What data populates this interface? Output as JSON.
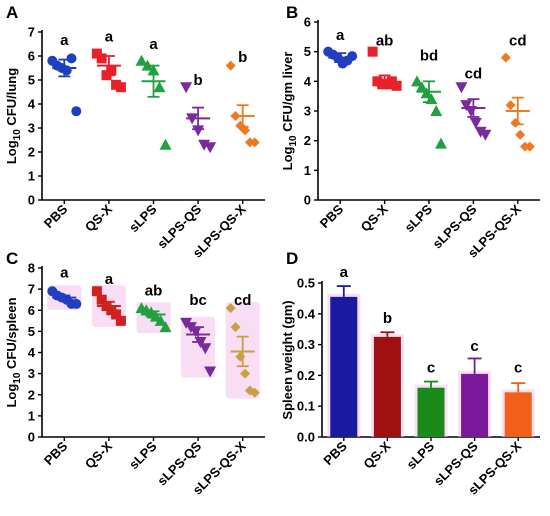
{
  "chart_data": [
    {
      "panel": "A",
      "type": "scatter",
      "categories": [
        "PBS",
        "QS-X",
        "sLPS",
        "sLPS-QS",
        "sLPS-QS-X"
      ],
      "ylabel_main": "Log",
      "ylabel_sub": "10",
      "ylabel_rest": " CFU/lung",
      "ylim": [
        0,
        7
      ],
      "yticks": [
        "0",
        "1",
        "2",
        "3",
        "4",
        "5",
        "6",
        "7"
      ],
      "marker_colors": [
        "#1f3fbf",
        "#e8202a",
        "#20a040",
        "#7a2a9a",
        "#f07820"
      ],
      "markers": [
        "circle",
        "square",
        "triangle-up",
        "triangle-down",
        "diamond"
      ],
      "points": [
        [
          5.8,
          5.6,
          5.5,
          5.4,
          5.9,
          3.7
        ],
        [
          6.1,
          5.9,
          5.2,
          5.4,
          4.8,
          4.7
        ],
        [
          5.8,
          5.6,
          5.4,
          4.7,
          2.3
        ],
        [
          4.7,
          3.4,
          2.9,
          2.3,
          2.2
        ],
        [
          5.6,
          3.5,
          3.1,
          2.9,
          2.4,
          2.4
        ]
      ],
      "means": [
        5.5,
        5.6,
        4.95,
        3.4,
        3.5
      ],
      "sems": [
        0.35,
        0.4,
        0.65,
        0.45,
        0.45
      ],
      "sig": [
        "a",
        "a",
        "a",
        "b",
        "b"
      ],
      "sig_y": [
        6.45,
        6.6,
        6.3,
        4.8,
        5.75
      ]
    },
    {
      "panel": "B",
      "type": "scatter",
      "categories": [
        "PBS",
        "QS-X",
        "sLPS",
        "sLPS-QS",
        "sLPS-QS-X"
      ],
      "ylabel_main": "Log",
      "ylabel_sub": "10",
      "ylabel_rest": " CFU/gm liver",
      "ylim": [
        0,
        6
      ],
      "yticks": [
        "0",
        "1",
        "2",
        "3",
        "4",
        "5",
        "6"
      ],
      "marker_colors": [
        "#1f3fbf",
        "#e8202a",
        "#20a040",
        "#7a2a9a",
        "#f07820"
      ],
      "markers": [
        "circle",
        "square",
        "triangle-up",
        "triangle-down",
        "diamond"
      ],
      "points": [
        [
          5.0,
          4.9,
          4.8,
          4.6,
          4.7,
          4.85
        ],
        [
          5.0,
          4.0,
          3.9,
          3.9,
          4.0,
          3.85
        ],
        [
          4.0,
          3.8,
          3.6,
          3.4,
          3.0,
          1.9
        ],
        [
          3.8,
          3.2,
          3.0,
          2.6,
          2.3,
          2.2
        ],
        [
          4.8,
          3.2,
          2.6,
          2.2,
          1.8,
          1.8
        ]
      ],
      "means": [
        4.8,
        4.05,
        3.65,
        3.1,
        3.0
      ],
      "sems": [
        0.15,
        0.15,
        0.35,
        0.3,
        0.45
      ],
      "sig": [
        "a",
        "ab",
        "bd",
        "cd",
        "cd"
      ],
      "sig_y": [
        5.4,
        5.2,
        4.7,
        4.1,
        5.2
      ]
    },
    {
      "panel": "C",
      "type": "scatter",
      "categories": [
        "PBS",
        "QS-X",
        "sLPS",
        "sLPS-QS",
        "sLPS-QS-X"
      ],
      "ylabel_main": "Log",
      "ylabel_sub": "10",
      "ylabel_rest": " CFU/spleen",
      "ylim": [
        0,
        8
      ],
      "yticks": [
        "0",
        "1",
        "2",
        "3",
        "4",
        "5",
        "6",
        "7",
        "8"
      ],
      "marker_colors": [
        "#1f3fbf",
        "#d02020",
        "#20a040",
        "#7a2a9a",
        "#c8a040"
      ],
      "markers": [
        "circle",
        "square",
        "triangle-up",
        "triangle-down",
        "diamond"
      ],
      "points": [
        [
          6.9,
          6.7,
          6.6,
          6.5,
          6.3,
          6.3
        ],
        [
          6.9,
          6.5,
          6.2,
          6.0,
          5.8,
          5.5
        ],
        [
          6.1,
          6.0,
          5.9,
          5.7,
          5.5,
          5.2
        ],
        [
          5.4,
          5.2,
          5.0,
          4.5,
          4.2,
          3.1
        ],
        [
          6.1,
          5.2,
          3.8,
          3.0,
          2.2,
          2.1
        ]
      ],
      "means": [
        6.6,
        6.2,
        5.8,
        4.85,
        4.05
      ],
      "sems": [
        0.1,
        0.2,
        0.15,
        0.35,
        0.7
      ],
      "sig": [
        "a",
        "a",
        "ab",
        "bc",
        "cd"
      ],
      "sig_y": [
        7.55,
        7.25,
        6.7,
        6.25,
        6.25
      ]
    },
    {
      "panel": "D",
      "type": "bar",
      "categories": [
        "PBS",
        "QS-X",
        "sLPS",
        "sLPS-QS",
        "sLPS-QS-X"
      ],
      "ylabel": "Spleen weight (gm)",
      "ylim": [
        0,
        0.5
      ],
      "yticks": [
        "0.0",
        "0.1",
        "0.2",
        "0.3",
        "0.4",
        "0.5"
      ],
      "values": [
        0.455,
        0.325,
        0.16,
        0.205,
        0.145
      ],
      "errors": [
        0.035,
        0.015,
        0.02,
        0.05,
        0.03
      ],
      "bar_colors": [
        "#1a1aa0",
        "#a01010",
        "#1a8a1a",
        "#7a1a9a",
        "#f06018"
      ],
      "sig": [
        "a",
        "b",
        "c",
        "c",
        "c"
      ],
      "sig_y": [
        0.52,
        0.37,
        0.21,
        0.28,
        0.21
      ]
    }
  ]
}
